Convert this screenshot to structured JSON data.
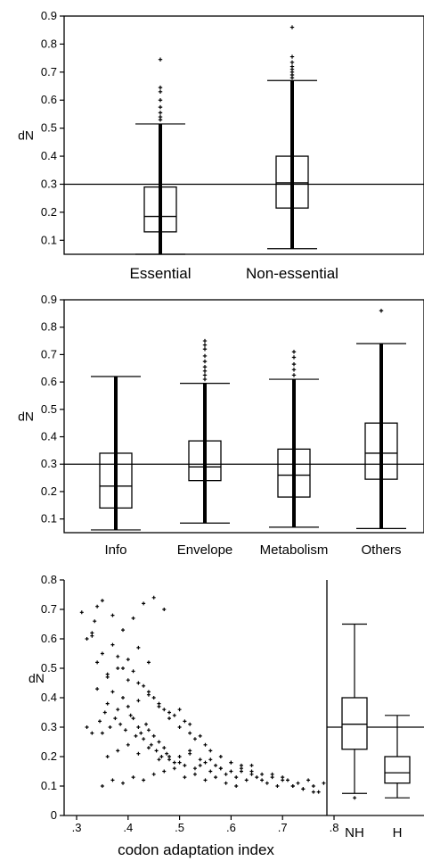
{
  "chart_data": [
    {
      "type": "box",
      "ylabel": "dN",
      "ylim": [
        0.05,
        0.9
      ],
      "yticks": [
        0.1,
        0.2,
        0.3,
        0.4,
        0.5,
        0.6,
        0.7,
        0.8,
        0.9
      ],
      "reference_line": 0.3,
      "categories": [
        "Essential",
        "Non-essential"
      ],
      "boxes": [
        {
          "name": "Essential",
          "whisker_low": 0.05,
          "q1": 0.13,
          "median": 0.185,
          "q3": 0.29,
          "whisker_high": 0.515,
          "outliers": [
            0.53,
            0.54,
            0.555,
            0.575,
            0.6,
            0.63,
            0.645,
            0.745
          ]
        },
        {
          "name": "Non-essential",
          "whisker_low": 0.07,
          "q1": 0.215,
          "median": 0.305,
          "q3": 0.4,
          "whisker_high": 0.67,
          "outliers": [
            0.68,
            0.69,
            0.7,
            0.71,
            0.72,
            0.735,
            0.755,
            0.86
          ]
        }
      ]
    },
    {
      "type": "box",
      "ylabel": "dN",
      "ylim": [
        0.05,
        0.9
      ],
      "yticks": [
        0.1,
        0.2,
        0.3,
        0.4,
        0.5,
        0.6,
        0.7,
        0.8,
        0.9
      ],
      "reference_line": 0.3,
      "categories": [
        "Info",
        "Envelope",
        "Metabolism",
        "Others"
      ],
      "boxes": [
        {
          "name": "Info",
          "whisker_low": 0.06,
          "q1": 0.14,
          "median": 0.22,
          "q3": 0.34,
          "whisker_high": 0.62,
          "outliers": []
        },
        {
          "name": "Envelope",
          "whisker_low": 0.085,
          "q1": 0.24,
          "median": 0.29,
          "q3": 0.385,
          "whisker_high": 0.595,
          "outliers": [
            0.61,
            0.625,
            0.64,
            0.655,
            0.675,
            0.695,
            0.72,
            0.735,
            0.75
          ]
        },
        {
          "name": "Metabolism",
          "whisker_low": 0.07,
          "q1": 0.18,
          "median": 0.26,
          "q3": 0.355,
          "whisker_high": 0.61,
          "outliers": [
            0.625,
            0.645,
            0.665,
            0.69,
            0.71
          ]
        },
        {
          "name": "Others",
          "whisker_low": 0.065,
          "q1": 0.245,
          "median": 0.34,
          "q3": 0.45,
          "whisker_high": 0.74,
          "outliers": [
            0.86
          ]
        }
      ]
    },
    {
      "type": "scatter",
      "xlabel": "codon adaptation index",
      "ylabel": "dN",
      "xlim": [
        0.28,
        0.87
      ],
      "ylim": [
        0,
        0.8
      ],
      "xticks": [
        0.3,
        0.4,
        0.5,
        0.6,
        0.7,
        0.8
      ],
      "xtick_labels": [
        ".3",
        ".4",
        ".5",
        ".6",
        ".7",
        ".8"
      ],
      "yticks": [
        0,
        0.1,
        0.2,
        0.3,
        0.4,
        0.5,
        0.6,
        0.7,
        0.8
      ],
      "ytick_labels": [
        "0",
        "0.1",
        "0.2",
        "0.3",
        "0.4",
        "0.5",
        "0.6",
        "0.7",
        "0.8"
      ],
      "x": [
        0.31,
        0.32,
        0.33,
        0.335,
        0.34,
        0.345,
        0.35,
        0.355,
        0.36,
        0.365,
        0.37,
        0.375,
        0.38,
        0.385,
        0.39,
        0.395,
        0.4,
        0.405,
        0.41,
        0.415,
        0.42,
        0.425,
        0.43,
        0.435,
        0.44,
        0.445,
        0.45,
        0.455,
        0.46,
        0.465,
        0.47,
        0.475,
        0.48,
        0.49,
        0.5,
        0.51,
        0.52,
        0.53,
        0.54,
        0.55,
        0.56,
        0.57,
        0.58,
        0.59,
        0.6,
        0.61,
        0.62,
        0.63,
        0.64,
        0.65,
        0.66,
        0.67,
        0.68,
        0.69,
        0.7,
        0.71,
        0.72,
        0.73,
        0.74,
        0.75,
        0.76,
        0.77,
        0.78,
        0.84,
        0.32,
        0.33,
        0.34,
        0.35,
        0.36,
        0.37,
        0.38,
        0.39,
        0.4,
        0.41,
        0.42,
        0.43,
        0.44,
        0.45,
        0.46,
        0.47,
        0.48,
        0.49,
        0.5,
        0.51,
        0.52,
        0.53,
        0.54,
        0.55,
        0.56,
        0.58,
        0.6,
        0.62,
        0.64,
        0.66,
        0.68,
        0.7,
        0.72,
        0.74,
        0.76,
        0.35,
        0.37,
        0.39,
        0.41,
        0.43,
        0.45,
        0.47,
        0.49,
        0.51,
        0.53,
        0.55,
        0.57,
        0.59,
        0.61,
        0.36,
        0.38,
        0.4,
        0.42,
        0.44,
        0.46,
        0.48,
        0.5,
        0.52,
        0.54,
        0.56,
        0.58,
        0.6,
        0.62,
        0.64,
        0.34,
        0.36,
        0.38,
        0.4,
        0.42,
        0.44,
        0.46,
        0.48,
        0.5,
        0.52,
        0.39,
        0.41,
        0.43,
        0.45,
        0.47,
        0.35,
        0.37,
        0.33,
        0.42,
        0.44
      ],
      "y": [
        0.69,
        0.3,
        0.28,
        0.66,
        0.71,
        0.32,
        0.28,
        0.35,
        0.38,
        0.3,
        0.42,
        0.33,
        0.36,
        0.31,
        0.4,
        0.29,
        0.37,
        0.34,
        0.33,
        0.27,
        0.3,
        0.28,
        0.26,
        0.31,
        0.29,
        0.24,
        0.27,
        0.22,
        0.25,
        0.2,
        0.23,
        0.21,
        0.19,
        0.18,
        0.2,
        0.17,
        0.21,
        0.16,
        0.19,
        0.18,
        0.15,
        0.17,
        0.16,
        0.14,
        0.15,
        0.13,
        0.16,
        0.12,
        0.14,
        0.13,
        0.12,
        0.11,
        0.14,
        0.1,
        0.13,
        0.12,
        0.1,
        0.11,
        0.09,
        0.12,
        0.1,
        0.08,
        0.11,
        0.06,
        0.6,
        0.61,
        0.52,
        0.55,
        0.48,
        0.58,
        0.54,
        0.5,
        0.46,
        0.49,
        0.45,
        0.44,
        0.42,
        0.4,
        0.38,
        0.36,
        0.35,
        0.34,
        0.3,
        0.32,
        0.28,
        0.26,
        0.27,
        0.24,
        0.22,
        0.2,
        0.18,
        0.17,
        0.15,
        0.14,
        0.13,
        0.12,
        0.1,
        0.09,
        0.08,
        0.1,
        0.12,
        0.11,
        0.13,
        0.12,
        0.14,
        0.15,
        0.16,
        0.13,
        0.14,
        0.12,
        0.13,
        0.11,
        0.1,
        0.2,
        0.22,
        0.24,
        0.21,
        0.23,
        0.19,
        0.2,
        0.18,
        0.22,
        0.17,
        0.19,
        0.16,
        0.18,
        0.15,
        0.17,
        0.43,
        0.47,
        0.5,
        0.53,
        0.39,
        0.41,
        0.37,
        0.33,
        0.36,
        0.31,
        0.63,
        0.67,
        0.72,
        0.74,
        0.7,
        0.73,
        0.68,
        0.62,
        0.57,
        0.52
      ],
      "boxes": [
        {
          "name": "NH",
          "whisker_low": 0.075,
          "q1": 0.225,
          "median": 0.31,
          "q3": 0.4,
          "whisker_high": 0.65,
          "outliers": []
        },
        {
          "name": "H",
          "whisker_low": 0.06,
          "q1": 0.11,
          "median": 0.145,
          "q3": 0.2,
          "whisker_high": 0.34,
          "outliers": []
        }
      ],
      "box_categories": [
        "NH",
        "H"
      ],
      "reference_line": 0.3
    }
  ]
}
